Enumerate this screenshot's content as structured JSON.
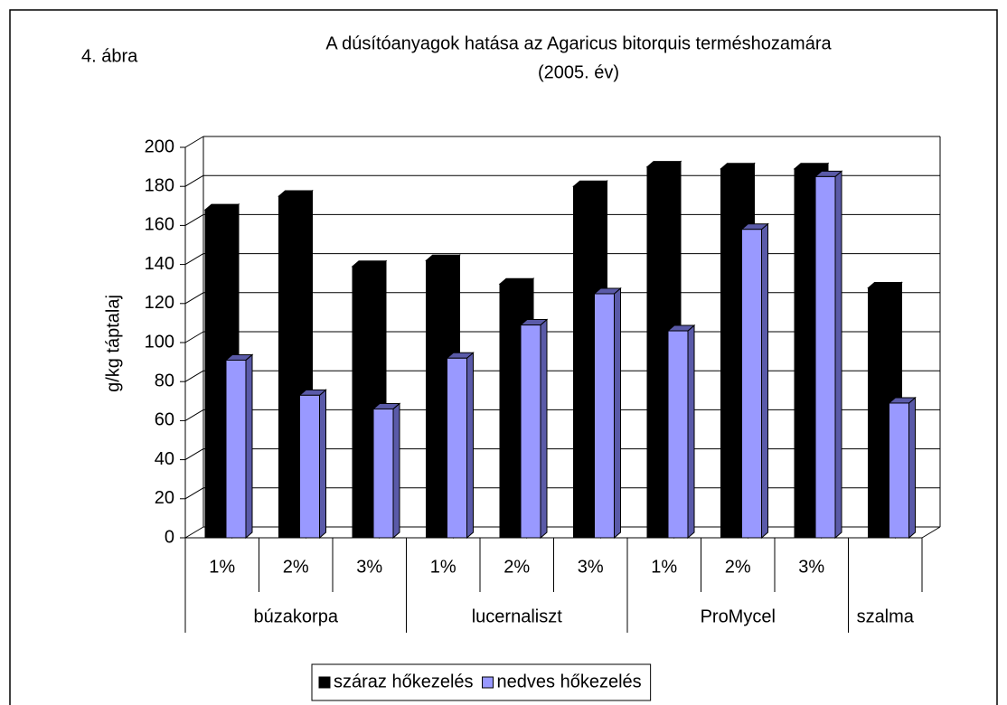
{
  "chart_data": {
    "type": "bar3d",
    "annotation": "4. ábra",
    "title": "A dúsítóanyagok hatása az Agaricus bitorquis terméshozamára",
    "subtitle": "(2005. év)",
    "y_label": "g/kg táptalaj",
    "categories": [
      "1%",
      "2%",
      "3%",
      "1%",
      "2%",
      "3%",
      "1%",
      "2%",
      "3%",
      null
    ],
    "groups": [
      {
        "label": "búzakorpa",
        "span": 3
      },
      {
        "label": "lucernaliszt",
        "span": 3
      },
      {
        "label": "ProMycel",
        "span": 3
      },
      {
        "label": "szalma",
        "span": 1
      }
    ],
    "series": [
      {
        "name": "száraz hőkezelés",
        "color": "#000000",
        "values": [
          168,
          175,
          139,
          142,
          130,
          180,
          190,
          189,
          189,
          128
        ]
      },
      {
        "name": "nedves hőkezelés",
        "color": "#9999ff",
        "values": [
          91,
          73,
          66,
          92,
          109,
          125,
          106,
          158,
          185,
          69
        ]
      }
    ],
    "ylim": [
      0,
      200
    ],
    "yticks": [
      0,
      20,
      40,
      60,
      80,
      100,
      120,
      140,
      160,
      180,
      200
    ],
    "grid": true,
    "legend": "bottom"
  }
}
